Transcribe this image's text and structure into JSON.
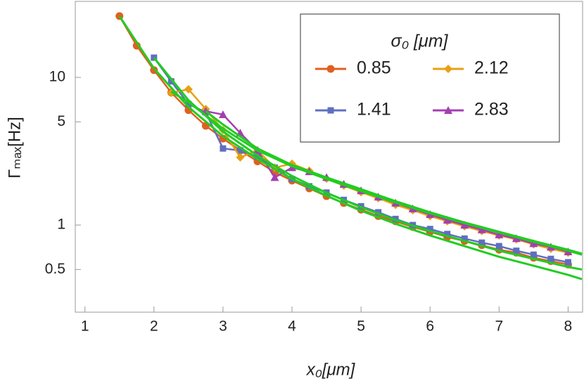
{
  "chart_data": {
    "type": "line",
    "xlabel": "x₀[μm]",
    "ylabel": "Γₘₐₓ[Hz]",
    "legend_title": "σ₀ [μm]",
    "legend_position": "upper right",
    "xlim": [
      0.86,
      8.21
    ],
    "ylim": [
      0.257,
      32.7
    ],
    "ylog": true,
    "xticks": [
      1,
      2,
      3,
      4,
      5,
      6,
      7,
      8
    ],
    "yticks": [
      0.5,
      1,
      5,
      10
    ],
    "series": [
      {
        "name": "0.85",
        "color": "#e0601f",
        "marker": "circle",
        "x": [
          1.5,
          1.75,
          2,
          2.25,
          2.5,
          2.75,
          3,
          3.25,
          3.5,
          3.75,
          4,
          4.25,
          4.5,
          4.75,
          5,
          5.25,
          5.5,
          5.75,
          6,
          6.25,
          6.5,
          6.75,
          7,
          7.25,
          7.5,
          7.75,
          8
        ],
        "values": [
          26,
          16.4,
          11.2,
          7.9,
          6.0,
          4.7,
          3.85,
          3.2,
          2.7,
          2.28,
          2.0,
          1.77,
          1.57,
          1.41,
          1.27,
          1.15,
          1.06,
          0.97,
          0.9,
          0.83,
          0.78,
          0.73,
          0.68,
          0.65,
          0.6,
          0.57,
          0.54
        ]
      },
      {
        "name": "1.41",
        "color": "#5f6fc0",
        "marker": "square",
        "x": [
          2,
          2.25,
          2.5,
          2.75,
          3,
          3.25,
          3.5,
          3.75,
          4,
          4.25,
          4.5,
          4.75,
          5,
          5.25,
          5.5,
          5.75,
          6,
          6.25,
          6.5,
          6.75,
          7,
          7.25,
          7.5,
          7.75,
          8
        ],
        "values": [
          13.6,
          9.4,
          6.6,
          5.8,
          3.3,
          3.2,
          2.9,
          2.45,
          2.05,
          1.83,
          1.66,
          1.48,
          1.34,
          1.22,
          1.1,
          1.0,
          0.94,
          0.87,
          0.81,
          0.76,
          0.72,
          0.67,
          0.63,
          0.59,
          0.56
        ]
      },
      {
        "name": "2.12",
        "color": "#e8a012",
        "marker": "diamond",
        "x": [
          2.25,
          2.5,
          2.75,
          3,
          3.25,
          3.5,
          3.75,
          4,
          4.25,
          4.5,
          4.75,
          5,
          5.25,
          5.5,
          5.75,
          6,
          6.25,
          6.5,
          6.75,
          7,
          7.25,
          7.5,
          7.75,
          8
        ],
        "values": [
          7.85,
          8.3,
          6.1,
          4.4,
          2.87,
          3.2,
          2.45,
          2.6,
          2.33,
          2.06,
          1.85,
          1.67,
          1.52,
          1.37,
          1.26,
          1.15,
          1.06,
          0.98,
          0.91,
          0.85,
          0.8,
          0.74,
          0.69,
          0.65
        ]
      },
      {
        "name": "2.83",
        "color": "#a43fb0",
        "marker": "triangle",
        "x": [
          2.75,
          3,
          3.25,
          3.5,
          3.75,
          4,
          4.25,
          4.5,
          4.75,
          5,
          5.25,
          5.5,
          5.75,
          6,
          6.25,
          6.5,
          6.75,
          7,
          7.25,
          7.5,
          7.75,
          8
        ],
        "values": [
          5.9,
          5.6,
          4.2,
          3.2,
          2.1,
          2.45,
          2.3,
          2.1,
          1.89,
          1.71,
          1.55,
          1.41,
          1.29,
          1.18,
          1.08,
          1.0,
          0.93,
          0.86,
          0.81,
          0.75,
          0.71,
          0.66
        ]
      }
    ],
    "fits": [
      {
        "color": "#22cc22",
        "x": [
          1.5,
          2,
          2.5,
          3,
          3.5,
          4,
          4.5,
          5,
          5.5,
          6,
          6.5,
          7,
          7.5,
          8,
          8.2
        ],
        "values": [
          26,
          11.5,
          6.3,
          4.0,
          2.8,
          2.05,
          1.58,
          1.25,
          1.02,
          0.85,
          0.72,
          0.61,
          0.53,
          0.46,
          0.43
        ]
      },
      {
        "color": "#22cc22",
        "x": [
          2,
          2.5,
          3,
          3.5,
          4,
          4.5,
          5,
          5.5,
          6,
          6.5,
          7,
          7.5,
          8,
          8.2
        ],
        "values": [
          13.6,
          7.0,
          4.3,
          2.95,
          2.15,
          1.65,
          1.32,
          1.08,
          0.91,
          0.78,
          0.67,
          0.59,
          0.52,
          0.5
        ]
      },
      {
        "color": "#22cc22",
        "x": [
          2.25,
          2.5,
          3,
          3.5,
          4,
          4.5,
          5,
          5.5,
          6,
          6.5,
          7,
          7.5,
          8,
          8.2
        ],
        "values": [
          8.0,
          6.8,
          4.5,
          3.2,
          2.5,
          2.05,
          1.7,
          1.42,
          1.2,
          1.03,
          0.89,
          0.77,
          0.67,
          0.63
        ]
      },
      {
        "color": "#22cc22",
        "x": [
          2.75,
          3,
          3.5,
          4,
          4.5,
          5,
          5.5,
          6,
          6.5,
          7,
          7.5,
          8,
          8.2
        ],
        "values": [
          5.9,
          4.8,
          3.3,
          2.55,
          2.1,
          1.75,
          1.45,
          1.22,
          1.04,
          0.9,
          0.78,
          0.68,
          0.64
        ]
      }
    ]
  }
}
